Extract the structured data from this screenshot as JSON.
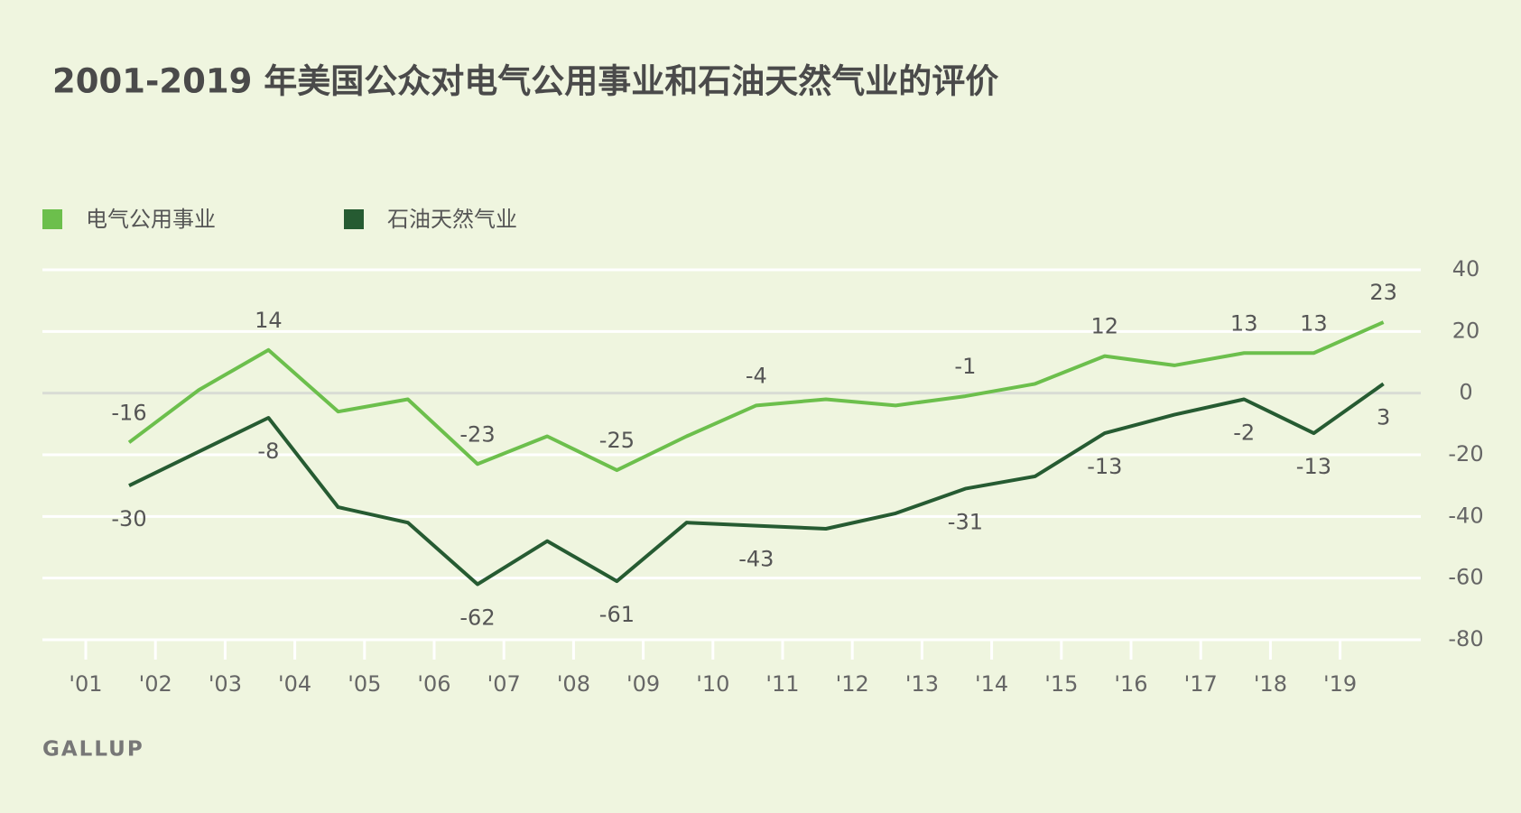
{
  "chart_data": {
    "type": "line",
    "title": "2001-2019 年美国公众对电气公用事业和石油天然气业的评价",
    "source": "GALLUP",
    "categories": [
      "'01",
      "'02",
      "'03",
      "'04",
      "'05",
      "'06",
      "'07",
      "'08",
      "'09",
      "'10",
      "'11",
      "'12",
      "'13",
      "'14",
      "'15",
      "'16",
      "'17",
      "'18",
      "'19"
    ],
    "series": [
      {
        "name": "电气公用事业",
        "color": "#6cbf4c",
        "values": [
          -16,
          1,
          14,
          -6,
          -2,
          -23,
          -14,
          -25,
          -14,
          -4,
          -2,
          -4,
          -1,
          3,
          12,
          9,
          13,
          13,
          23
        ],
        "value_labels": [
          "-16",
          null,
          "14",
          null,
          null,
          "-23",
          null,
          "-25",
          null,
          "-4",
          null,
          null,
          "-1",
          null,
          "12",
          null,
          "13",
          "13",
          "23"
        ]
      },
      {
        "name": "石油天然气业",
        "color": "#265b32",
        "values": [
          -30,
          -19,
          -8,
          -37,
          -42,
          -62,
          -48,
          -61,
          -42,
          -43,
          -44,
          -39,
          -31,
          -27,
          -13,
          -7,
          -2,
          -13,
          3
        ],
        "value_labels": [
          "-30",
          null,
          "-8",
          null,
          null,
          "-62",
          null,
          "-61",
          null,
          "-43",
          null,
          null,
          "-31",
          null,
          "-13",
          null,
          "-2",
          "-13",
          "3"
        ]
      }
    ],
    "ylim": [
      -80,
      40
    ],
    "yticks": [
      -80,
      -60,
      -40,
      -20,
      0,
      20,
      40
    ],
    "grid": true,
    "y_axis_side": "right"
  }
}
